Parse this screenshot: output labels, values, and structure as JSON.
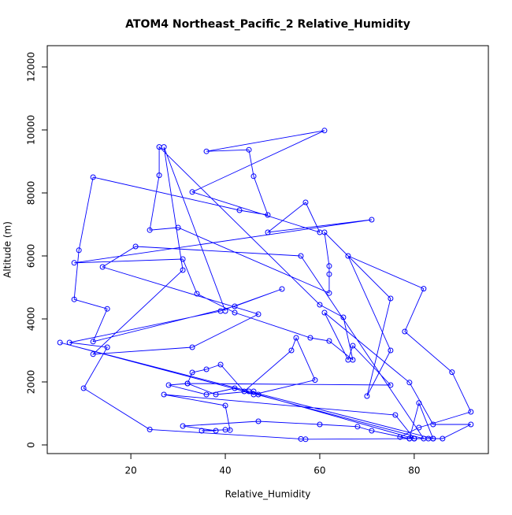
{
  "chart_data": {
    "type": "line",
    "title": "ATOM4 Northeast_Pacific_2 Relative_Humidity",
    "x_label": "Relative_Humidity",
    "y_label": "Altitude (m)",
    "color": "#0000ff",
    "markers": true,
    "xlim": [
      2.3,
      95.7
    ],
    "ylim": [
      -275,
      12675
    ],
    "xticks": [
      20,
      40,
      60,
      80
    ],
    "yticks": [
      0,
      2000,
      4000,
      6000,
      8000,
      10000,
      12000
    ],
    "x": [
      80,
      57,
      56,
      24,
      10,
      15,
      7,
      39,
      52,
      42,
      12,
      15,
      8,
      9,
      12,
      43,
      49,
      46,
      45,
      36,
      61,
      33,
      60,
      57,
      49,
      71,
      8,
      31,
      34,
      42,
      58,
      62,
      67,
      65,
      60,
      26,
      26,
      24,
      30,
      62,
      62,
      62,
      61,
      75,
      70,
      75,
      66,
      82,
      78,
      88,
      92,
      81,
      77,
      79,
      80,
      83,
      84,
      86,
      92,
      84,
      79,
      61,
      66,
      67,
      75,
      32,
      33,
      36,
      39,
      44,
      54,
      55,
      59,
      46,
      42,
      36,
      28,
      32,
      38,
      45,
      46,
      47,
      80,
      76,
      27,
      40,
      41,
      40,
      35,
      38,
      31,
      47,
      60,
      68,
      71,
      79,
      81,
      84,
      5,
      82,
      56,
      21,
      14,
      47,
      33,
      12,
      31,
      27,
      40
    ],
    "y": [
      200,
      180,
      190,
      490,
      1800,
      3100,
      3250,
      4250,
      4950,
      4400,
      3280,
      4320,
      4620,
      6180,
      8500,
      7450,
      7300,
      8530,
      9370,
      9320,
      9980,
      8030,
      6750,
      7700,
      6750,
      7150,
      5780,
      5900,
      4800,
      4200,
      3400,
      3300,
      2700,
      4050,
      4450,
      9460,
      8560,
      6820,
      6900,
      4820,
      5420,
      5680,
      6750,
      4650,
      1550,
      3000,
      6000,
      4960,
      3600,
      2310,
      1050,
      550,
      250,
      200,
      200,
      200,
      200,
      200,
      650,
      650,
      1980,
      4200,
      2700,
      3150,
      1900,
      1950,
      2300,
      2400,
      2550,
      1700,
      3000,
      3400,
      2060,
      1600,
      1800,
      1600,
      1900,
      1950,
      1600,
      1700,
      1700,
      1600,
      200,
      950,
      1600,
      1250,
      470,
      480,
      450,
      450,
      600,
      750,
      650,
      580,
      450,
      200,
      1330,
      200,
      3250,
      200,
      6000,
      6300,
      5650,
      4150,
      3100,
      2880,
      5550,
      9460,
      4250
    ]
  }
}
